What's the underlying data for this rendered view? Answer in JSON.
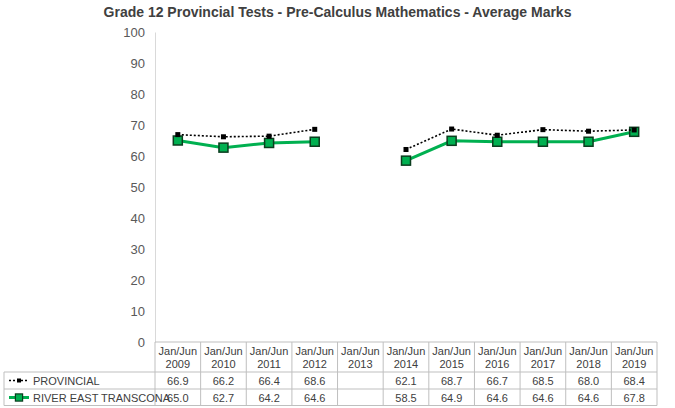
{
  "chart_data": {
    "type": "line",
    "title": "Grade 12 Provincial Tests - Pre-Calculus Mathematics - Average Marks",
    "categories": [
      "Jan/Jun 2009",
      "Jan/Jun 2010",
      "Jan/Jun 2011",
      "Jan/Jun 2012",
      "Jan/Jun 2013",
      "Jan/Jun 2014",
      "Jan/Jun 2015",
      "Jan/Jun 2016",
      "Jan/Jun 2017",
      "Jan/Jun 2018",
      "Jan/Jun 2019"
    ],
    "series": [
      {
        "name": "PROVINCIAL",
        "color": "#000000",
        "marker": "square",
        "line_style": "dotted",
        "values": [
          66.9,
          66.2,
          66.4,
          68.6,
          null,
          62.1,
          68.7,
          66.7,
          68.5,
          68.0,
          68.4
        ],
        "value_labels": [
          "66.9",
          "66.2",
          "66.4",
          "68.6",
          null,
          "62.1",
          "68.7",
          "66.7",
          "68.5",
          "68.0",
          "68.4"
        ]
      },
      {
        "name": "RIVER EAST TRANSCONA",
        "color": "#00B050",
        "marker": "square",
        "line_style": "solid",
        "values": [
          65.0,
          62.7,
          64.2,
          64.6,
          null,
          58.5,
          64.9,
          64.6,
          64.6,
          64.6,
          67.8
        ],
        "value_labels": [
          "65.0",
          "62.7",
          "64.2",
          "64.6",
          null,
          "58.5",
          "64.9",
          "64.6",
          "64.6",
          "64.6",
          "67.8"
        ]
      }
    ],
    "ylim": [
      0,
      100
    ],
    "yticks": [
      0,
      10,
      20,
      30,
      40,
      50,
      60,
      70,
      80,
      90,
      100
    ],
    "grid": false
  }
}
